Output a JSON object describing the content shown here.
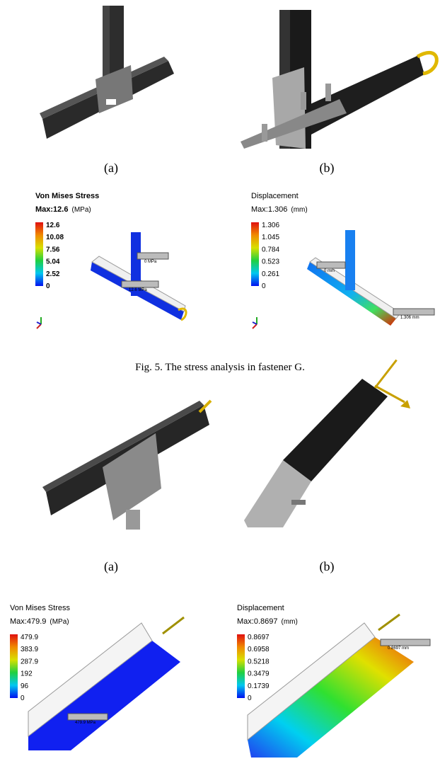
{
  "figure_5": {
    "panel_labels": [
      "(a)",
      "(b)"
    ],
    "results": [
      {
        "title": "Von Mises Stress",
        "max": "Max:12.6",
        "unit": "(MPa)",
        "scale": [
          "12.6",
          "10.08",
          "7.56",
          "5.04",
          "2.52",
          "0"
        ],
        "probes": [
          "0 MPa",
          "12.6 MPa"
        ]
      },
      {
        "title": "Displacement",
        "max": "Max:1.306",
        "unit": "(mm)",
        "scale": [
          "1.306",
          "1.045",
          "0.784",
          "0.523",
          "0.261",
          "0"
        ],
        "probes": [
          "0 mm",
          "1.306 mm"
        ]
      }
    ],
    "caption": "Fig. 5. The stress analysis in fastener G."
  },
  "figure_6": {
    "panel_labels": [
      "(a)",
      "(b)"
    ],
    "results": [
      {
        "title": "Von Mises Stress",
        "max": "Max:479.9",
        "unit": "(MPa)",
        "scale": [
          "479.9",
          "383.9",
          "287.9",
          "192",
          "96",
          "0"
        ],
        "probes": [
          "479.9 MPa"
        ]
      },
      {
        "title": "Displacement",
        "max": "Max:0.8697",
        "unit": "(mm)",
        "scale": [
          "0.8697",
          "0.6958",
          "0.5218",
          "0.3479",
          "0.1739",
          "0"
        ],
        "probes": [
          "0.8697 mm"
        ]
      }
    ]
  }
}
